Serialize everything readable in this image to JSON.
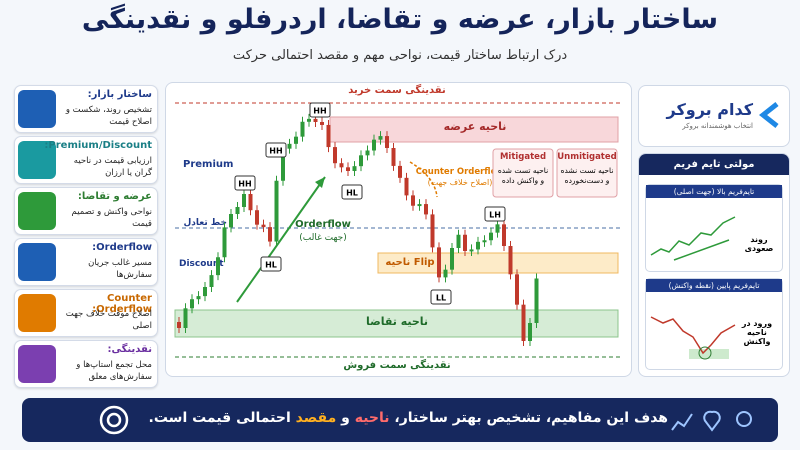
{
  "header": {
    "title": "ساختار بازار، عرضه و تقاضا، اردرفلو و نقدینگی",
    "subtitle": "درک ارتباط ساختار قیمت، نواحی مهم و مقصد احتمالی حرکت"
  },
  "cards": [
    {
      "title": "ساختار بازار:",
      "text": "تشخیص روند، شکست و اصلاح قیمت"
    },
    {
      "title": "Premium/Discount:",
      "text": "ارزیابی قیمت در ناحیه گران یا ارزان"
    },
    {
      "title": "عرضه و تقاضا:",
      "text": "نواحی واکنش و تصمیم قیمت"
    },
    {
      "title": "Orderflow:",
      "text": "مسیر غالب جریان سفارش‌ها"
    },
    {
      "title": "Counter Orderflow:",
      "text": "اصلاح موقت خلاف جهت اصلی"
    },
    {
      "title": "نقدینگی:",
      "text": "محل تجمع استاپ‌ها و سفارش‌های معلق"
    }
  ],
  "chart": {
    "buy_liquidity": "نقدینگی سمت خرید",
    "supply_zone": "ناحیه عرضه",
    "premium": "Premium",
    "equilibrium": "خط تعادل",
    "discount": "Discount",
    "orderflow": "Orderflow",
    "orderflow_note": "(جهت غالب)",
    "counter_orderflow": "Counter Orderflow",
    "counter_note": "(اصلاح خلاف جهت)",
    "mitigated": "Mitigated",
    "mitigated_note": "ناحیه تست شده و واکنش داده",
    "unmitigated": "Unmitigated",
    "unmitigated_note": "ناحیه تست نشده و دست‌نخورده",
    "flip_zone": "ناحیه Flip",
    "demand_zone": "ناحیه تقاضا",
    "sell_liquidity": "نقدینگی سمت فروش",
    "points": [
      "HH",
      "HH",
      "HH",
      "HL",
      "HL",
      "LH",
      "LL"
    ]
  },
  "brand": {
    "name": "کدام بروکر",
    "tagline": "انتخاب هوشمندانه بروکر"
  },
  "mtf": {
    "title": "مولتی تایم فریم",
    "htf": "تایم‌فریم بالا (جهت اصلی)",
    "htf_note": "روند صعودی",
    "ltf": "تایم‌فریم پایین (نقطه واکنش)",
    "ltf_note": "ورود در ناحیه واکنش"
  },
  "footer": {
    "parts": [
      "هدف این مفاهیم، تشخیص بهتر ساختار، ",
      "ناحیه",
      " و ",
      "مقصد",
      " احتمالی قیمت است."
    ]
  }
}
